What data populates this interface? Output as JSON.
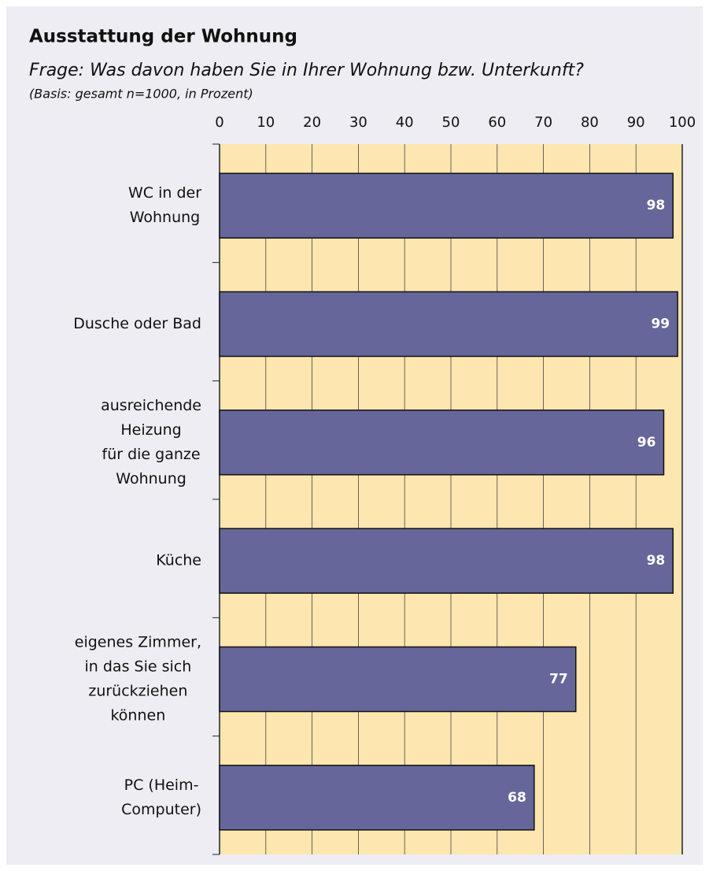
{
  "chart_data": {
    "type": "bar",
    "orientation": "horizontal",
    "title": "Ausstattung der Wohnung",
    "subtitle": "Frage: Was davon haben Sie in Ihrer Wohnung bzw. Unterkunft?",
    "note": "(Basis: gesamt n=1000, in Prozent)",
    "categories": [
      [
        "WC in der",
        "Wohnung"
      ],
      [
        "Dusche oder Bad"
      ],
      [
        "ausreichende",
        "Heizung",
        "für die ganze",
        "Wohnung"
      ],
      [
        "Küche"
      ],
      [
        "eigenes Zimmer,",
        "in das Sie sich",
        "zurückziehen",
        "können"
      ],
      [
        "PC (Heim-",
        "Computer)"
      ]
    ],
    "values": [
      98,
      99,
      96,
      98,
      77,
      68
    ],
    "color": "#66669a",
    "xlim": [
      0,
      100
    ],
    "xticks": [
      0,
      10,
      20,
      30,
      40,
      50,
      60,
      70,
      80,
      90,
      100
    ],
    "grid": true
  }
}
